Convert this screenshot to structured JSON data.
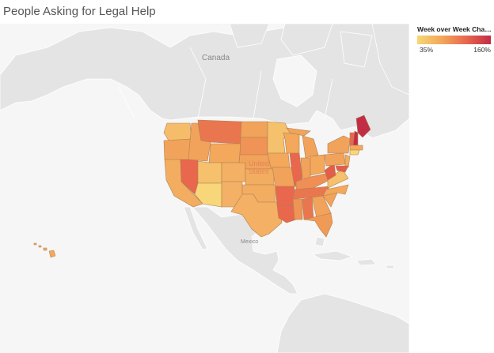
{
  "title": "People Asking for Legal Help",
  "legend": {
    "title": "Week over Week Chang..",
    "min_label": "35%",
    "max_label": "160%",
    "colors": [
      "#f6d774",
      "#f3a75a",
      "#e8674d",
      "#c22d46"
    ]
  },
  "map_labels": {
    "canada": "Canada",
    "united": "United",
    "states": "States",
    "mexico": "Mexico"
  },
  "colors": {
    "land": "#e4e4e4",
    "water": "#f6f6f6",
    "border": "#ffffff",
    "state_border": "#b08050"
  }
}
